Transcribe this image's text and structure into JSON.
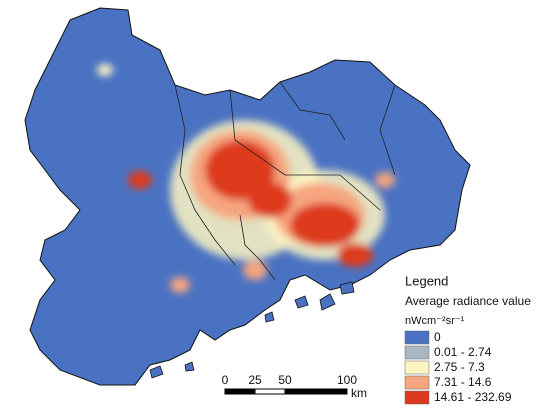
{
  "legend": {
    "title": "Legend",
    "subtitle": "Average radiance value",
    "unit": "nWcm⁻²sr⁻¹",
    "classes": [
      {
        "label": "0",
        "color": "#4a72c2"
      },
      {
        "label": "0.01 - 2.74",
        "color": "#aab8c4"
      },
      {
        "label": "2.75 - 7.3",
        "color": "#fdf5c2"
      },
      {
        "label": "7.31 - 14.6",
        "color": "#f6a57f"
      },
      {
        "label": "14.61 - 232.69",
        "color": "#dd3a1f"
      }
    ]
  },
  "scale_bar": {
    "labels": [
      "0",
      "25",
      "50",
      "100"
    ],
    "unit": "km"
  }
}
